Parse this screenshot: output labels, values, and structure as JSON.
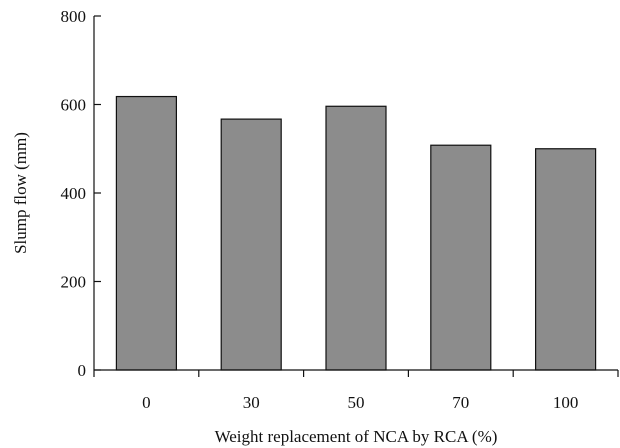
{
  "chart_data": {
    "type": "bar",
    "title": "",
    "xlabel": "Weight replacement of NCA by RCA (%)",
    "ylabel": "Slump flow (mm)",
    "categories": [
      "0",
      "30",
      "50",
      "70",
      "100"
    ],
    "values": [
      618,
      567,
      596,
      508,
      500
    ],
    "ylim": [
      0,
      800
    ],
    "yticks": [
      "0",
      "200",
      "400",
      "600",
      "800"
    ],
    "grid": false,
    "legend": "none",
    "colors": {
      "bar_fill": "#8c8c8c",
      "bar_stroke": "#111111",
      "axis": "#111111"
    }
  }
}
